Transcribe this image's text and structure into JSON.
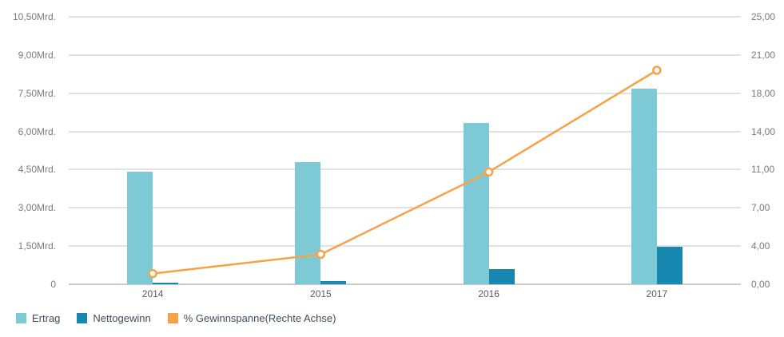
{
  "chart_data": {
    "type": "combo-bar-line",
    "categories": [
      "2014",
      "2015",
      "2016",
      "2017"
    ],
    "series": [
      {
        "name": "Ertrag",
        "type": "bar",
        "axis": "left",
        "color": "#7dcad6",
        "values": [
          4.43,
          4.81,
          6.32,
          7.68
        ]
      },
      {
        "name": "Nettogewinn",
        "type": "bar",
        "axis": "left",
        "color": "#1787b0",
        "values": [
          0.06,
          0.13,
          0.6,
          1.47
        ]
      },
      {
        "name": "% Gewinnspanne(Rechte Achse)",
        "type": "line",
        "axis": "right",
        "color": "#f7a249",
        "marker": "circle-white-fill",
        "values": [
          1.0,
          2.8,
          10.5,
          20.0
        ]
      }
    ],
    "left_axis": {
      "unit": "Mrd.",
      "min": 0,
      "max": 10.5,
      "tick_labels": [
        "0",
        "1,50Mrd.",
        "3,00Mrd.",
        "4,50Mrd.",
        "6,00Mrd.",
        "7,50Mrd.",
        "9,00Mrd.",
        "10,50Mrd."
      ],
      "tick_values": [
        0,
        1.5,
        3,
        4.5,
        6,
        7.5,
        9,
        10.5
      ]
    },
    "right_axis": {
      "min": 0,
      "max": 25,
      "tick_labels": [
        "0,00",
        "4,00",
        "7,00",
        "11,00",
        "14,00",
        "18,00",
        "21,00",
        "25,00"
      ]
    },
    "grid": true,
    "legend_position": "bottom-left"
  },
  "legend": {
    "items": [
      {
        "label": "Ertrag",
        "color": "#7dcad6"
      },
      {
        "label": "Nettogewinn",
        "color": "#1787b0"
      },
      {
        "label": "% Gewinnspanne(Rechte Achse)",
        "color": "#f7a249"
      }
    ]
  }
}
